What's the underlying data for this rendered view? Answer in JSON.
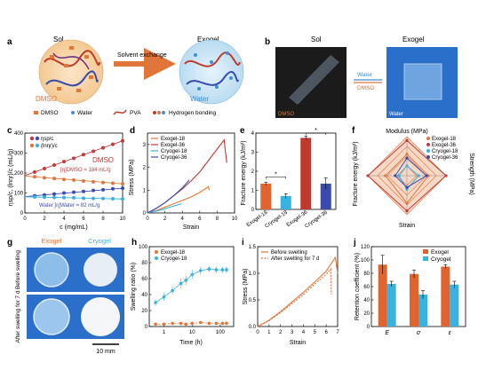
{
  "panel_letters": [
    "a",
    "b",
    "c",
    "d",
    "e",
    "f",
    "g",
    "h",
    "i",
    "j"
  ],
  "panel_a": {
    "sol_label": "Sol",
    "exogel_label": "Exogel",
    "arrow_label": "Solvent exchange",
    "dmso_label": "DMSO",
    "water_label": "Water",
    "legend": [
      "DMSO",
      "Water",
      "PVA",
      "Hydrogen bonding"
    ]
  },
  "panel_b": {
    "sol_label": "Sol",
    "exogel_label": "Exogel",
    "water_label": "Water",
    "dmso_label": "DMSO",
    "photo_water_label": "Water",
    "photo_dmso_label": "DMSO"
  },
  "colors": {
    "dmso": "#e1763a",
    "water": "#3d8fd6",
    "exogel": "#e1763a",
    "cryogel": "#39b2e0",
    "exogel36": "#c23a3a",
    "cryogel36": "#3a4bb0",
    "exogel_bar": "#e1642f",
    "cryogel_bar": "#39b2e0",
    "polymer_red": "#c0392b",
    "polymer_blue": "#3a4bb0"
  },
  "chart_data": [
    {
      "panel": "c",
      "type": "scatter",
      "xlabel": "c (mg/mL)",
      "ylabel": "ηsp/c, (lnηr)/c (mL/g)",
      "xlim": [
        0,
        10
      ],
      "ylim": [
        0,
        400
      ],
      "xticks": [
        0,
        2,
        4,
        6,
        8,
        10
      ],
      "yticks": [
        0,
        100,
        200,
        300,
        400
      ],
      "legend": [
        "ηsp/c",
        "(lnηr)/c"
      ],
      "annotation_dmso": "DMSO",
      "annotation_dmso_eq": "[η]DMSO = 184 mL/g",
      "annotation_water": "Water [η]Water = 82 mL/g",
      "series": [
        {
          "name": "DMSO ηsp/c",
          "x": [
            1,
            2,
            3,
            4,
            5,
            6,
            7,
            8,
            9,
            10
          ],
          "y": [
            205,
            222,
            240,
            257,
            274,
            292,
            309,
            326,
            344,
            361
          ]
        },
        {
          "name": "DMSO (lnηr)/c",
          "x": [
            1,
            2,
            3,
            4,
            5,
            6,
            7,
            8,
            9,
            10
          ],
          "y": [
            181,
            176,
            173,
            168,
            165,
            160,
            156,
            152,
            149,
            146
          ]
        },
        {
          "name": "Water ηsp/c",
          "x": [
            1,
            2,
            3,
            4,
            5,
            6,
            7,
            8,
            9,
            10
          ],
          "y": [
            86,
            90,
            95,
            100,
            104,
            108,
            113,
            116,
            121,
            124
          ]
        },
        {
          "name": "Water (lnηr)/c",
          "x": [
            1,
            2,
            3,
            4,
            5,
            6,
            7,
            8,
            9,
            10
          ],
          "y": [
            80,
            79,
            78,
            77,
            76,
            74,
            73,
            72,
            71,
            70
          ]
        }
      ]
    },
    {
      "panel": "d",
      "type": "line",
      "xlabel": "Strain",
      "ylabel": "Stress (MPa)",
      "xlim": [
        0,
        10
      ],
      "ylim": [
        0,
        3.5
      ],
      "xticks": [
        0,
        2,
        4,
        6,
        8,
        10
      ],
      "yticks": [
        0,
        1,
        2,
        3
      ],
      "series": [
        {
          "name": "Exogel-18",
          "x": [
            0,
            1,
            2,
            3,
            4,
            5,
            6,
            7,
            7.1
          ],
          "y": [
            0,
            0.1,
            0.25,
            0.4,
            0.55,
            0.7,
            0.9,
            1.15,
            1.0
          ]
        },
        {
          "name": "Exogel-36",
          "x": [
            0,
            1,
            2,
            3,
            4,
            5,
            6,
            7,
            8,
            8.8,
            9.1
          ],
          "y": [
            0,
            0.2,
            0.45,
            0.75,
            1.05,
            1.4,
            1.8,
            2.3,
            2.8,
            3.2,
            2.2
          ]
        },
        {
          "name": "Cryogel-18",
          "x": [
            0,
            1,
            2,
            3,
            3.9
          ],
          "y": [
            0,
            0.08,
            0.18,
            0.3,
            0.4
          ]
        },
        {
          "name": "Cryogel-36",
          "x": [
            0,
            1,
            2,
            3,
            4,
            4.8
          ],
          "y": [
            0,
            0.2,
            0.45,
            0.75,
            1.1,
            1.45
          ]
        }
      ]
    },
    {
      "panel": "e",
      "type": "bar",
      "ylabel": "Fracture energy (kJ/m²)",
      "ylim": [
        0,
        4
      ],
      "yticks": [
        0,
        1,
        2,
        3,
        4
      ],
      "categories": [
        "Exogel-18",
        "Cryogel-18",
        "Exogel-36",
        "Cryogel-36"
      ],
      "values": [
        1.35,
        0.7,
        3.75,
        1.35
      ],
      "errors": [
        0.08,
        0.12,
        0.1,
        0.3
      ],
      "significance": [
        "*",
        "*"
      ]
    },
    {
      "panel": "f",
      "type": "radar",
      "axes_labels": [
        "Modulus (MPa)",
        "Strength (MPa)",
        "Strain",
        "Fracture energy (kJ/m²)"
      ],
      "legend": [
        "Exogel-18",
        "Exogel-36",
        "Cryogel-18",
        "Cryogel-36"
      ]
    },
    {
      "panel": "h",
      "type": "line",
      "xlabel": "Time (h)",
      "ylabel": "Swelling ratio (%)",
      "xscale": "log",
      "xticks": [
        1,
        10,
        100
      ],
      "xtick_labels": [
        "1",
        "10",
        "100"
      ],
      "ylim": [
        0,
        100
      ],
      "yticks": [
        0,
        20,
        40,
        60,
        80,
        100
      ],
      "series": [
        {
          "name": "Exogel-18",
          "x": [
            0.5,
            1,
            2,
            4,
            6,
            10,
            20,
            40,
            72,
            120,
            168
          ],
          "y": [
            3,
            3,
            4,
            4,
            3,
            4,
            5,
            4,
            4,
            4,
            4
          ],
          "err": [
            2,
            2,
            2,
            2,
            2,
            2,
            2,
            2,
            2,
            2,
            2
          ]
        },
        {
          "name": "Cryogel-18",
          "x": [
            0.5,
            1,
            2,
            4,
            6,
            10,
            20,
            40,
            72,
            120,
            168
          ],
          "y": [
            30,
            37,
            45,
            54,
            58,
            65,
            70,
            72,
            71,
            71,
            71
          ],
          "err": [
            4,
            5,
            5,
            6,
            6,
            6,
            5,
            4,
            4,
            4,
            4
          ]
        }
      ]
    },
    {
      "panel": "i",
      "type": "line",
      "xlabel": "Strain",
      "ylabel": "Stress (MPa)",
      "xlim": [
        0,
        7
      ],
      "ylim": [
        0,
        1.5
      ],
      "xticks": [
        0,
        1,
        2,
        3,
        4,
        5,
        6,
        7
      ],
      "yticks": [
        0,
        0.5,
        1.0,
        1.5
      ],
      "series": [
        {
          "name": "Before swelling",
          "x": [
            0,
            1,
            2,
            3,
            4,
            5,
            6,
            6.8,
            7.0
          ],
          "y": [
            0,
            0.12,
            0.28,
            0.46,
            0.64,
            0.84,
            1.04,
            1.3,
            1.0
          ]
        },
        {
          "name": "After swelling for 7 d",
          "x": [
            0,
            1,
            2,
            3,
            4,
            5,
            6,
            6.4,
            6.45
          ],
          "y": [
            0,
            0.11,
            0.26,
            0.43,
            0.6,
            0.8,
            0.98,
            1.08,
            0.6
          ]
        }
      ]
    },
    {
      "panel": "j",
      "type": "bar",
      "ylabel": "Retention coefficient (%)",
      "ylim": [
        0,
        120
      ],
      "yticks": [
        0,
        20,
        40,
        60,
        80,
        100,
        120
      ],
      "categories": [
        "E",
        "σ",
        "ε"
      ],
      "series": [
        {
          "name": "Exogel",
          "values": [
            93,
            79,
            90
          ],
          "errors": [
            14,
            6,
            3
          ]
        },
        {
          "name": "Cryogel",
          "values": [
            64,
            48,
            63
          ],
          "errors": [
            4,
            6,
            5
          ]
        }
      ]
    }
  ],
  "panel_g": {
    "exogel_label": "Exogel",
    "cryogel_label": "Cryogel",
    "row1_label": "Before swelling",
    "row2_label": "After swelling for 7 d",
    "scalebar_label": "10 mm"
  }
}
